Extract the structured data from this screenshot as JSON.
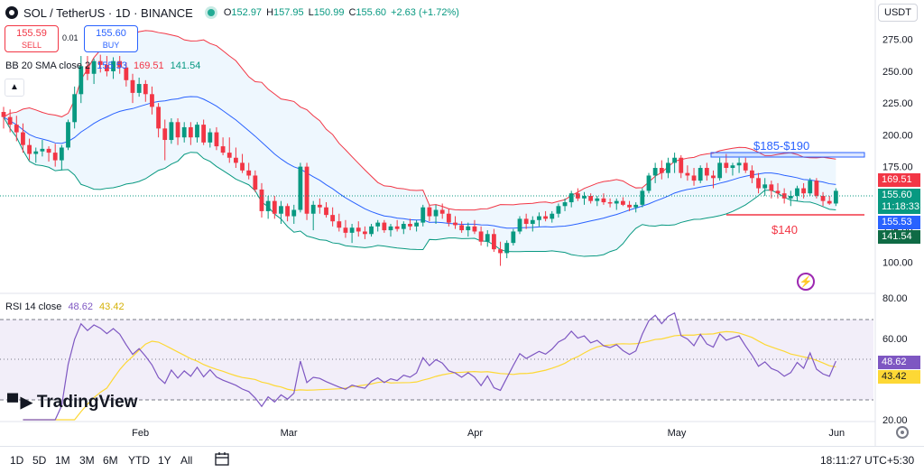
{
  "header": {
    "symbol": "SOL / TetherUS · 1D · BINANCE",
    "open_label": "O",
    "open": "152.97",
    "high_label": "H",
    "high": "157.95",
    "low_label": "L",
    "low": "150.99",
    "close_label": "C",
    "close": "155.60",
    "change": "+2.63 (+1.72%)"
  },
  "trade": {
    "sell_price": "155.59",
    "sell_label": "SELL",
    "spread": "0.01",
    "buy_price": "155.60",
    "buy_label": "BUY"
  },
  "currency": "USDT",
  "bb_legend": {
    "title": "BB 20 SMA close 2",
    "basis": "155.53",
    "upper": "169.51",
    "lower": "141.54"
  },
  "rsi_legend": {
    "title": "RSI 14 close",
    "rsi": "48.62",
    "ma": "43.42"
  },
  "logo": "TradingView",
  "timeframes": [
    "1D",
    "5D",
    "1M",
    "3M",
    "6M",
    "YTD",
    "1Y",
    "All"
  ],
  "clock": "18:11:27 UTC+5:30",
  "colors": {
    "up": "#089981",
    "down": "#f23645",
    "bb_basis": "#2962ff",
    "bb_upper": "#f23645",
    "bb_lower": "#089981",
    "rsi": "#7e57c2",
    "rsi_ma": "#fdd835"
  },
  "chart_data": [
    {
      "type": "candlestick",
      "title": "SOL / TetherUS · 1D · BINANCE",
      "y_ticks": [
        100,
        125,
        150,
        175,
        200,
        225,
        250,
        275
      ],
      "ylim": [
        86,
        289
      ],
      "x_labels": [
        "Feb",
        "Mar",
        "Apr",
        "May",
        "Jun"
      ],
      "candles": [
        [
          218,
          222,
          205,
          214
        ],
        [
          214,
          220,
          202,
          208
        ],
        [
          208,
          215,
          195,
          202
        ],
        [
          202,
          209,
          186,
          192
        ],
        [
          192,
          197,
          180,
          185
        ],
        [
          185,
          190,
          178,
          187
        ],
        [
          187,
          196,
          183,
          189
        ],
        [
          189,
          191,
          179,
          186
        ],
        [
          186,
          193,
          175,
          180
        ],
        [
          180,
          192,
          172,
          190
        ],
        [
          190,
          212,
          188,
          210
        ],
        [
          210,
          238,
          205,
          232
        ],
        [
          232,
          262,
          225,
          254
        ],
        [
          254,
          262,
          243,
          248
        ],
        [
          248,
          260,
          240,
          258
        ],
        [
          258,
          263,
          249,
          255
        ],
        [
          255,
          262,
          246,
          250
        ],
        [
          250,
          261,
          244,
          258
        ],
        [
          258,
          262,
          248,
          253
        ],
        [
          253,
          257,
          238,
          243
        ],
        [
          243,
          248,
          225,
          233
        ],
        [
          233,
          245,
          230,
          240
        ],
        [
          240,
          243,
          226,
          232
        ],
        [
          232,
          238,
          216,
          222
        ],
        [
          222,
          225,
          198,
          205
        ],
        [
          205,
          212,
          180,
          196
        ],
        [
          196,
          213,
          193,
          210
        ],
        [
          210,
          213,
          192,
          198
        ],
        [
          198,
          210,
          194,
          206
        ],
        [
          206,
          210,
          192,
          198
        ],
        [
          198,
          210,
          194,
          208
        ],
        [
          208,
          212,
          192,
          194
        ],
        [
          194,
          205,
          190,
          202
        ],
        [
          202,
          206,
          188,
          191
        ],
        [
          191,
          198,
          184,
          186
        ],
        [
          186,
          198,
          178,
          182
        ],
        [
          182,
          190,
          174,
          178
        ],
        [
          178,
          185,
          170,
          172
        ],
        [
          172,
          178,
          165,
          168
        ],
        [
          168,
          172,
          155,
          157
        ],
        [
          157,
          162,
          135,
          140
        ],
        [
          140,
          152,
          134,
          148
        ],
        [
          148,
          152,
          134,
          138
        ],
        [
          138,
          148,
          130,
          144
        ],
        [
          144,
          146,
          132,
          136
        ],
        [
          136,
          145,
          130,
          141
        ],
        [
          141,
          178,
          139,
          175
        ],
        [
          175,
          178,
          133,
          138
        ],
        [
          138,
          148,
          125,
          145
        ],
        [
          145,
          150,
          138,
          143
        ],
        [
          143,
          147,
          135,
          137
        ],
        [
          137,
          143,
          128,
          132
        ],
        [
          132,
          138,
          124,
          127
        ],
        [
          127,
          133,
          119,
          123
        ],
        [
          123,
          130,
          115,
          127
        ],
        [
          127,
          132,
          120,
          124
        ],
        [
          124,
          128,
          118,
          122
        ],
        [
          122,
          130,
          120,
          128
        ],
        [
          128,
          133,
          124,
          131
        ],
        [
          131,
          133,
          123,
          125
        ],
        [
          125,
          130,
          120,
          128
        ],
        [
          128,
          133,
          124,
          126
        ],
        [
          126,
          132,
          122,
          130
        ],
        [
          130,
          134,
          125,
          128
        ],
        [
          128,
          133,
          124,
          131
        ],
        [
          131,
          145,
          128,
          143
        ],
        [
          143,
          145,
          132,
          136
        ],
        [
          136,
          145,
          130,
          141
        ],
        [
          141,
          146,
          134,
          138
        ],
        [
          138,
          142,
          128,
          131
        ],
        [
          131,
          136,
          126,
          129
        ],
        [
          129,
          132,
          123,
          125
        ],
        [
          125,
          131,
          120,
          128
        ],
        [
          128,
          133,
          122,
          124
        ],
        [
          124,
          128,
          113,
          116
        ],
        [
          116,
          125,
          112,
          122
        ],
        [
          122,
          126,
          108,
          110
        ],
        [
          110,
          116,
          97,
          107
        ],
        [
          107,
          117,
          103,
          115
        ],
        [
          115,
          126,
          113,
          124
        ],
        [
          124,
          136,
          122,
          134
        ],
        [
          134,
          138,
          126,
          130
        ],
        [
          130,
          136,
          124,
          133
        ],
        [
          133,
          139,
          128,
          136
        ],
        [
          136,
          140,
          132,
          134
        ],
        [
          134,
          140,
          131,
          138
        ],
        [
          138,
          146,
          135,
          144
        ],
        [
          144,
          150,
          140,
          147
        ],
        [
          147,
          156,
          143,
          154
        ],
        [
          154,
          158,
          148,
          150
        ],
        [
          150,
          155,
          145,
          152
        ],
        [
          152,
          154,
          146,
          148
        ],
        [
          148,
          152,
          144,
          150
        ],
        [
          150,
          154,
          145,
          147
        ],
        [
          147,
          150,
          143,
          146
        ],
        [
          146,
          150,
          141,
          148
        ],
        [
          148,
          151,
          144,
          145
        ],
        [
          145,
          148,
          140,
          143
        ],
        [
          143,
          147,
          139,
          145
        ],
        [
          145,
          158,
          143,
          156
        ],
        [
          156,
          170,
          154,
          168
        ],
        [
          168,
          178,
          162,
          174
        ],
        [
          174,
          180,
          165,
          170
        ],
        [
          170,
          182,
          166,
          178
        ],
        [
          178,
          186,
          170,
          182
        ],
        [
          182,
          184,
          166,
          170
        ],
        [
          170,
          176,
          164,
          168
        ],
        [
          168,
          174,
          160,
          164
        ],
        [
          164,
          176,
          162,
          174
        ],
        [
          174,
          178,
          164,
          168
        ],
        [
          168,
          172,
          158,
          166
        ],
        [
          166,
          182,
          164,
          178
        ],
        [
          178,
          185,
          170,
          174
        ],
        [
          174,
          178,
          168,
          176
        ],
        [
          176,
          182,
          170,
          178
        ],
        [
          178,
          182,
          170,
          172
        ],
        [
          172,
          176,
          162,
          166
        ],
        [
          166,
          170,
          154,
          158
        ],
        [
          158,
          166,
          152,
          161
        ],
        [
          161,
          164,
          150,
          156
        ],
        [
          156,
          162,
          150,
          154
        ],
        [
          154,
          158,
          146,
          150
        ],
        [
          150,
          156,
          144,
          152
        ],
        [
          152,
          160,
          148,
          158
        ],
        [
          158,
          162,
          150,
          154
        ],
        [
          154,
          166,
          152,
          164
        ],
        [
          164,
          166,
          150,
          152
        ],
        [
          152,
          155,
          144,
          148
        ],
        [
          148,
          152,
          145,
          146
        ],
        [
          146,
          158,
          144,
          156
        ]
      ],
      "bollinger": {
        "period": 20,
        "multiplier": 2
      }
    },
    {
      "type": "line",
      "title": "RSI 14 close",
      "y_ticks": [
        20,
        40,
        60,
        80
      ],
      "ylim": [
        20,
        80
      ],
      "bands": [
        30,
        50,
        70
      ]
    }
  ]
}
